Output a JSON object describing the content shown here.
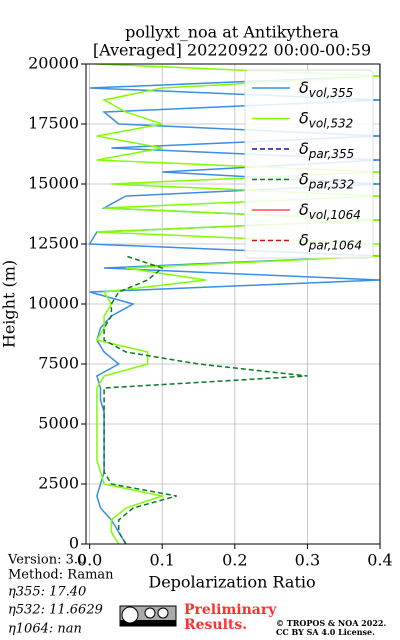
{
  "chart_data": {
    "type": "profile",
    "title": "pollyxt_noa at Antikythera",
    "subtitle": "[Averaged] 20220922 00:00-00:59",
    "xlabel": "Depolarization Ratio",
    "ylabel": "Height (m)",
    "xlim": [
      -0.005,
      0.4
    ],
    "xticks": [
      {
        "value": 0,
        "label": "0.0"
      },
      0.1,
      0.2,
      0.3,
      0.4
    ],
    "ylim": [
      0,
      20000
    ],
    "yticks": [
      0,
      2500,
      5000,
      7500,
      10000,
      12500,
      15000,
      17500,
      20000
    ],
    "grid": true,
    "legend": "upper right",
    "y": [
      0,
      500,
      1000,
      1500,
      2000,
      2500,
      3000,
      3500,
      4000,
      4500,
      5000,
      5500,
      6000,
      6500,
      7000,
      7500,
      8000,
      8500,
      9000,
      9500,
      10000,
      10500,
      11000,
      11500,
      12000,
      12500,
      13000,
      13500,
      14000,
      14500,
      15000,
      15500,
      16000,
      16500,
      17000,
      17500,
      18000,
      18500,
      19000,
      19500,
      20000
    ],
    "series": [
      {
        "name": "δvol,355",
        "color": "#3a8ee6",
        "linestyle": "solid",
        "values": [
          0.05,
          0.04,
          0.03,
          0.015,
          0.01,
          0.015,
          0.02,
          0.02,
          0.02,
          0.02,
          0.02,
          0.02,
          0.015,
          0.015,
          0.01,
          0.04,
          0.02,
          0.01,
          0.015,
          0.03,
          0.06,
          0.0,
          0.4,
          0.02,
          0.4,
          0.0,
          0.01,
          0.4,
          0.02,
          0.05,
          0.4,
          0.1,
          0.4,
          0.03,
          0.4,
          0.04,
          0.02,
          0.4,
          0.0,
          0.4,
          0.4
        ]
      },
      {
        "name": "δvol,532",
        "color": "#80ff00",
        "linestyle": "solid",
        "values": [
          0.04,
          0.03,
          0.03,
          0.05,
          0.1,
          0.02,
          0.015,
          0.01,
          0.01,
          0.01,
          0.01,
          0.01,
          0.01,
          0.01,
          0.02,
          0.08,
          0.08,
          0.01,
          0.02,
          0.02,
          0.03,
          0.02,
          0.16,
          0.05,
          0.4,
          0.4,
          0.01,
          0.4,
          0.02,
          0.4,
          0.03,
          0.4,
          0.01,
          0.1,
          0.01,
          0.1,
          0.05,
          0.02,
          0.1,
          0.4,
          0.01
        ]
      },
      {
        "name": "δpar,355",
        "color": "#1010c0",
        "linestyle": "dashed",
        "values": [
          null,
          null,
          null,
          null,
          null,
          null,
          null,
          null,
          null,
          null,
          null,
          null,
          null,
          null,
          null,
          null,
          null,
          null,
          null,
          null,
          null,
          null,
          null,
          null,
          null,
          null,
          null,
          null,
          null,
          null,
          null,
          null,
          null,
          null,
          null,
          null,
          null,
          null,
          null,
          null,
          null
        ]
      },
      {
        "name": "δpar,532",
        "color": "#0a7a28",
        "linestyle": "dashed",
        "values": [
          0.05,
          0.04,
          0.04,
          0.06,
          0.12,
          0.03,
          0.02,
          0.02,
          0.02,
          0.02,
          0.02,
          0.02,
          0.02,
          0.02,
          0.3,
          0.15,
          0.05,
          0.02,
          0.02,
          0.03,
          0.03,
          0.04,
          0.08,
          0.1,
          0.05,
          null,
          null,
          null,
          null,
          null,
          null,
          null,
          null,
          null,
          null,
          null,
          null,
          null,
          null,
          null,
          null
        ]
      },
      {
        "name": "δvol,1064",
        "color": "#ff4f4f",
        "linestyle": "solid",
        "values": [
          null,
          null,
          null,
          null,
          null,
          null,
          null,
          null,
          null,
          null,
          null,
          null,
          null,
          null,
          null,
          null,
          null,
          null,
          null,
          null,
          null,
          null,
          null,
          null,
          null,
          null,
          null,
          null,
          null,
          null,
          null,
          null,
          null,
          null,
          null,
          null,
          null,
          null,
          null,
          null,
          null
        ]
      },
      {
        "name": "δpar,1064",
        "color": "#d01010",
        "linestyle": "dashed",
        "values": [
          null,
          null,
          null,
          null,
          null,
          null,
          null,
          null,
          null,
          null,
          null,
          null,
          null,
          null,
          null,
          null,
          null,
          null,
          null,
          null,
          null,
          null,
          null,
          null,
          null,
          null,
          null,
          null,
          null,
          null,
          null,
          null,
          null,
          null,
          null,
          null,
          null,
          null,
          null,
          null,
          null
        ]
      }
    ]
  },
  "footer": {
    "version": "Version: 3.0",
    "method": "Method: Raman",
    "eta355": "η355:  17.40",
    "eta532": "η532: 11.6629",
    "eta1064": "η1064:    nan",
    "preliminary": "Preliminary",
    "results": "Results.",
    "copyright": "© TROPOS & NOA 2022.",
    "license": "CC BY SA 4.0 License."
  }
}
